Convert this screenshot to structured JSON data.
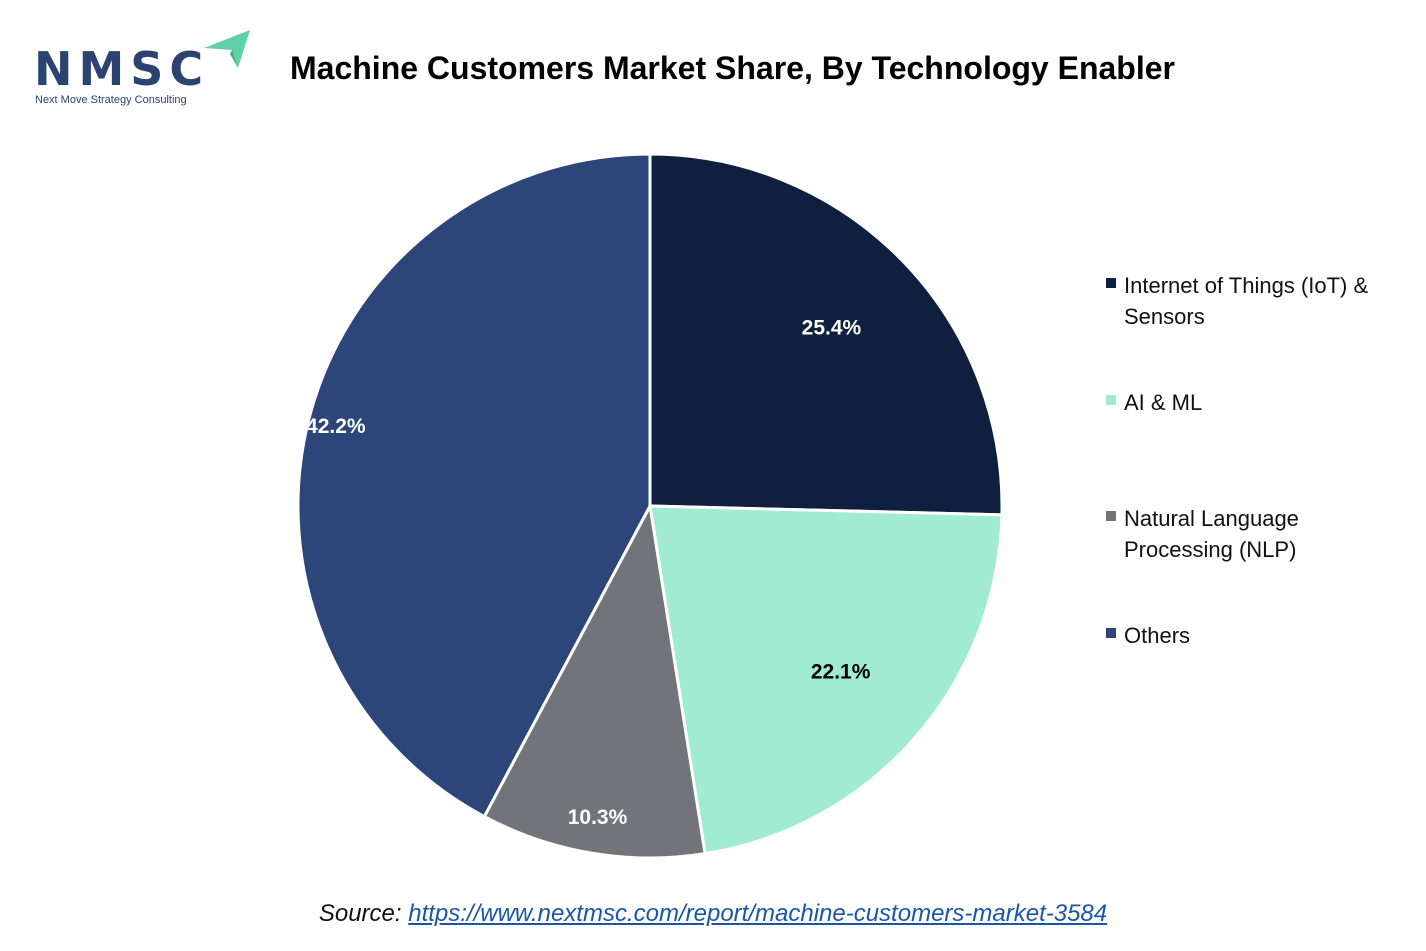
{
  "logo": {
    "text": "NMSC",
    "subtitle": "Next Move Strategy Consulting"
  },
  "colors": {
    "logo_blue": "#2c4271",
    "logo_accent": "#5fd1a6"
  },
  "source": {
    "prefix": "Source: ",
    "link_text": "https://www.nextmsc.com/report/machine-customers-market-3584"
  },
  "chart_data": {
    "type": "pie",
    "title": "Machine Customers Market Share, By Technology Enabler",
    "categories": [
      "Internet of Things (IoT) & Sensors",
      "AI & ML",
      "Natural Language Processing (NLP)",
      "Others"
    ],
    "values": [
      25.4,
      22.1,
      10.3,
      42.2
    ],
    "labels": [
      "25.4%",
      "22.1%",
      "10.3%",
      "42.2%"
    ],
    "colors": [
      "#0f1f3f",
      "#a0ebd1",
      "#717479",
      "#2c4679"
    ],
    "label_colors": [
      "#ffffff",
      "#000000",
      "#ffffff",
      "#ffffff"
    ],
    "legend_position": "right",
    "start_angle": "12 o'clock, clockwise"
  }
}
